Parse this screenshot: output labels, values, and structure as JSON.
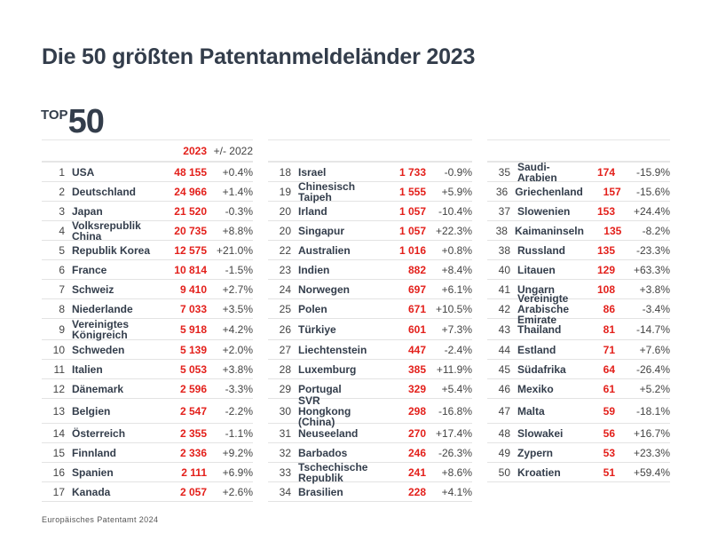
{
  "title": "Die 50 größten Patentanmeldeländer 2023",
  "badge": {
    "top": "TOP",
    "number": "50"
  },
  "header": {
    "year": "2023",
    "change": "+/- 2022"
  },
  "accent_color": "#e3201b",
  "columns": [
    [
      {
        "rank": "1",
        "name": "USA",
        "value": "48 155",
        "change": "+0.4%"
      },
      {
        "rank": "2",
        "name": "Deutschland",
        "value": "24 966",
        "change": "+1.4%"
      },
      {
        "rank": "3",
        "name": "Japan",
        "value": "21 520",
        "change": "-0.3%"
      },
      {
        "rank": "4",
        "name": "Volksrepublik China",
        "value": "20 735",
        "change": "+8.8%"
      },
      {
        "rank": "5",
        "name": "Republik Korea",
        "value": "12 575",
        "change": "+21.0%"
      },
      {
        "rank": "6",
        "name": "France",
        "value": "10 814",
        "change": "-1.5%"
      },
      {
        "rank": "7",
        "name": "Schweiz",
        "value": "9 410",
        "change": "+2.7%"
      },
      {
        "rank": "8",
        "name": "Niederlande",
        "value": "7 033",
        "change": "+3.5%"
      },
      {
        "rank": "9",
        "name": "Vereinigtes Königreich",
        "value": "5 918",
        "change": "+4.2%"
      },
      {
        "rank": "10",
        "name": "Schweden",
        "value": "5 139",
        "change": "+2.0%"
      },
      {
        "rank": "11",
        "name": "Italien",
        "value": "5 053",
        "change": "+3.8%"
      },
      {
        "rank": "12",
        "name": "Dänemark",
        "value": "2 596",
        "change": "-3.3%"
      },
      {
        "rank": "13",
        "name": "Belgien",
        "value": "2 547",
        "change": "-2.2%"
      },
      {
        "rank": "14",
        "name": "Österreich",
        "value": "2 355",
        "change": "-1.1%"
      },
      {
        "rank": "15",
        "name": "Finnland",
        "value": "2 336",
        "change": "+9.2%"
      },
      {
        "rank": "16",
        "name": "Spanien",
        "value": "2 111",
        "change": "+6.9%"
      },
      {
        "rank": "17",
        "name": "Kanada",
        "value": "2 057",
        "change": "+2.6%"
      }
    ],
    [
      {
        "rank": "18",
        "name": "Israel",
        "value": "1 733",
        "change": "-0.9%"
      },
      {
        "rank": "19",
        "name": "Chinesisch Taipeh",
        "value": "1 555",
        "change": "+5.9%"
      },
      {
        "rank": "20",
        "name": "Irland",
        "value": "1 057",
        "change": "-10.4%"
      },
      {
        "rank": "20",
        "name": "Singapur",
        "value": "1 057",
        "change": "+22.3%"
      },
      {
        "rank": "22",
        "name": "Australien",
        "value": "1 016",
        "change": "+0.8%"
      },
      {
        "rank": "23",
        "name": "Indien",
        "value": "882",
        "change": "+8.4%"
      },
      {
        "rank": "24",
        "name": "Norwegen",
        "value": "697",
        "change": "+6.1%"
      },
      {
        "rank": "25",
        "name": "Polen",
        "value": "671",
        "change": "+10.5%"
      },
      {
        "rank": "26",
        "name": "Türkiye",
        "value": "601",
        "change": "+7.3%"
      },
      {
        "rank": "27",
        "name": "Liechtenstein",
        "value": "447",
        "change": "-2.4%"
      },
      {
        "rank": "28",
        "name": "Luxemburg",
        "value": "385",
        "change": "+11.9%"
      },
      {
        "rank": "29",
        "name": "Portugal",
        "value": "329",
        "change": "+5.4%"
      },
      {
        "rank": "30",
        "name": "SVR Hongkong (China)",
        "value": "298",
        "change": "-16.8%"
      },
      {
        "rank": "31",
        "name": "Neuseeland",
        "value": "270",
        "change": "+17.4%"
      },
      {
        "rank": "32",
        "name": "Barbados",
        "value": "246",
        "change": "-26.3%"
      },
      {
        "rank": "33",
        "name": "Tschechische Republik",
        "value": "241",
        "change": "+8.6%"
      },
      {
        "rank": "34",
        "name": "Brasilien",
        "value": "228",
        "change": "+4.1%"
      }
    ],
    [
      {
        "rank": "35",
        "name": "Saudi-Arabien",
        "value": "174",
        "change": "-15.9%"
      },
      {
        "rank": "36",
        "name": "Griechenland",
        "value": "157",
        "change": "-15.6%"
      },
      {
        "rank": "37",
        "name": "Slowenien",
        "value": "153",
        "change": "+24.4%"
      },
      {
        "rank": "38",
        "name": "Kaimaninseln",
        "value": "135",
        "change": "-8.2%"
      },
      {
        "rank": "38",
        "name": "Russland",
        "value": "135",
        "change": "-23.3%"
      },
      {
        "rank": "40",
        "name": "Litauen",
        "value": "129",
        "change": "+63.3%"
      },
      {
        "rank": "41",
        "name": "Ungarn",
        "value": "108",
        "change": "+3.8%"
      },
      {
        "rank": "42",
        "name": "Vereinigte Arabische Emirate",
        "value": "86",
        "change": "-3.4%"
      },
      {
        "rank": "43",
        "name": "Thailand",
        "value": "81",
        "change": "-14.7%"
      },
      {
        "rank": "44",
        "name": "Estland",
        "value": "71",
        "change": "+7.6%"
      },
      {
        "rank": "45",
        "name": "Südafrika",
        "value": "64",
        "change": "-26.4%"
      },
      {
        "rank": "46",
        "name": "Mexiko",
        "value": "61",
        "change": "+5.2%"
      },
      {
        "rank": "47",
        "name": "Malta",
        "value": "59",
        "change": "-18.1%"
      },
      {
        "rank": "48",
        "name": "Slowakei",
        "value": "56",
        "change": "+16.7%"
      },
      {
        "rank": "49",
        "name": "Zypern",
        "value": "53",
        "change": "+23.3%"
      },
      {
        "rank": "50",
        "name": "Kroatien",
        "value": "51",
        "change": "+59.4%"
      }
    ]
  ],
  "footer": "Europäisches Patentamt 2024"
}
